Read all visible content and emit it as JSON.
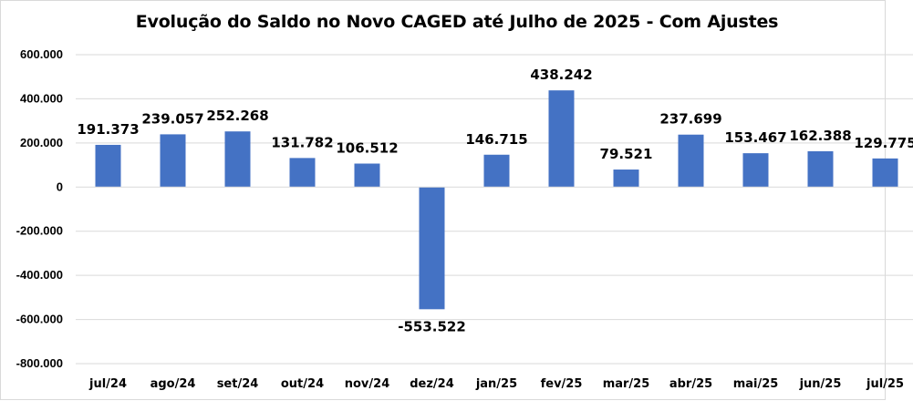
{
  "chart_data": {
    "type": "bar",
    "title": "Evolução do Saldo no Novo CAGED até Julho de 2025 - Com Ajustes",
    "xlabel": "",
    "ylabel": "",
    "categories": [
      "jul/24",
      "ago/24",
      "set/24",
      "out/24",
      "nov/24",
      "dez/24",
      "jan/25",
      "fev/25",
      "mar/25",
      "abr/25",
      "mai/25",
      "jun/25",
      "jul/25"
    ],
    "values": [
      191373,
      239057,
      252268,
      131782,
      106512,
      -553522,
      146715,
      438242,
      79521,
      237699,
      153467,
      162388,
      129775
    ],
    "data_labels": [
      "191.373",
      "239.057",
      "252.268",
      "131.782",
      "106.512",
      "-553.522",
      "146.715",
      "438.242",
      "79.521",
      "237.699",
      "153.467",
      "162.388",
      "129.775"
    ],
    "ylim": [
      -800000,
      600000
    ],
    "y_ticks": [
      600000,
      400000,
      200000,
      0,
      -200000,
      -400000,
      -600000,
      -800000
    ],
    "y_tick_labels": [
      "600.000",
      "400.000",
      "200.000",
      "0",
      "-200.000",
      "-400.000",
      "-600.000",
      "-800.000"
    ],
    "grid": true,
    "legend": "none",
    "colors": {
      "bar": "#4472c4",
      "grid": "#d9d9d9",
      "text": "#000000"
    }
  }
}
